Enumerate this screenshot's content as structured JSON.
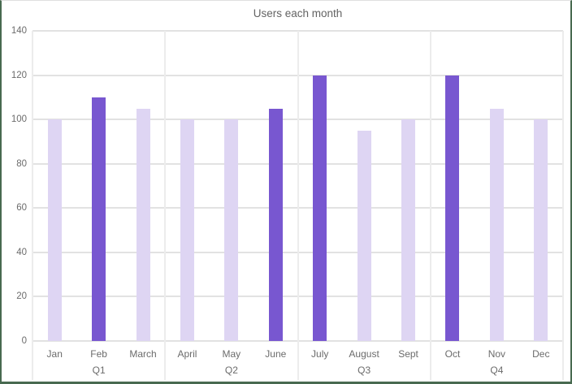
{
  "page": {
    "title": "Users each month"
  },
  "chart_data": {
    "type": "bar",
    "title": "Users each month",
    "categories": [
      "Jan",
      "Feb",
      "March",
      "April",
      "May",
      "June",
      "July",
      "August",
      "Sept",
      "Oct",
      "Nov",
      "Dec"
    ],
    "values": [
      100,
      110,
      105,
      100,
      100,
      105,
      120,
      95,
      100,
      120,
      105,
      100
    ],
    "highlighted_categories": [
      "Feb",
      "June",
      "July",
      "Oct"
    ],
    "groups": [
      {
        "label": "Q1",
        "months": [
          "Jan",
          "Feb",
          "March"
        ]
      },
      {
        "label": "Q2",
        "months": [
          "April",
          "May",
          "June"
        ]
      },
      {
        "label": "Q3",
        "months": [
          "July",
          "August",
          "Sept"
        ]
      },
      {
        "label": "Q4",
        "months": [
          "Oct",
          "Nov",
          "Dec"
        ]
      }
    ],
    "xlabel": "",
    "ylabel": "",
    "ylim": [
      0,
      140
    ],
    "yticks": [
      0,
      20,
      40,
      60,
      80,
      100,
      120,
      140
    ],
    "grid": "horizontal-major-with-vertical-group-separators",
    "legend": "none",
    "colors": {
      "bar": "#ded5f3",
      "bar_highlighted": "#7857d0",
      "gridline": "#e2e2e2",
      "separator": "#ececec",
      "tick_text": "#6b6b6b",
      "title_text": "#636363",
      "frame_border": "#486a50",
      "background": "#ffffff"
    }
  }
}
